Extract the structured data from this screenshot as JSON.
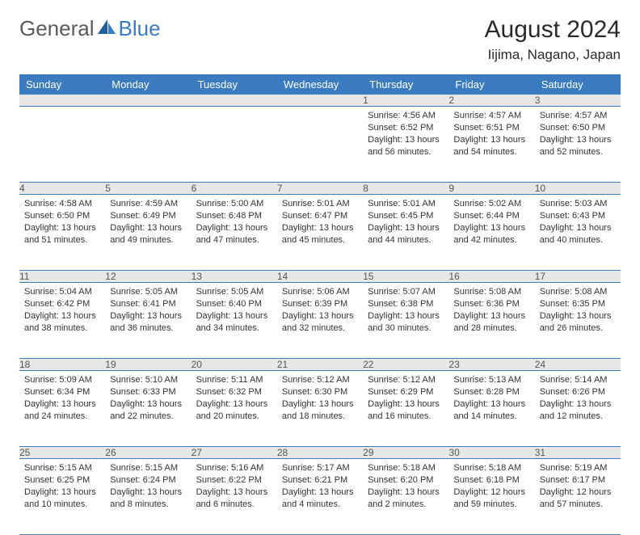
{
  "brand": {
    "part1": "General",
    "part2": "Blue"
  },
  "title": "August 2024",
  "location": "Iijima, Nagano, Japan",
  "colors": {
    "header_bg": "#3b7bbf",
    "header_text": "#ffffff",
    "daynum_bg": "#e7e7e7",
    "daynum_text": "#555555",
    "cell_text": "#333333",
    "row_border": "#3b7bbf",
    "logo_gray": "#5a5a5a",
    "logo_blue": "#3b7bbf",
    "background": "#ffffff"
  },
  "typography": {
    "title_fontsize": 30,
    "location_fontsize": 17,
    "dayheader_fontsize": 13,
    "daynum_fontsize": 12,
    "cell_fontsize": 11,
    "logo_fontsize": 26
  },
  "day_headers": [
    "Sunday",
    "Monday",
    "Tuesday",
    "Wednesday",
    "Thursday",
    "Friday",
    "Saturday"
  ],
  "weeks": [
    [
      null,
      null,
      null,
      null,
      {
        "n": "1",
        "sunrise": "Sunrise: 4:56 AM",
        "sunset": "Sunset: 6:52 PM",
        "daylight": "Daylight: 13 hours and 56 minutes."
      },
      {
        "n": "2",
        "sunrise": "Sunrise: 4:57 AM",
        "sunset": "Sunset: 6:51 PM",
        "daylight": "Daylight: 13 hours and 54 minutes."
      },
      {
        "n": "3",
        "sunrise": "Sunrise: 4:57 AM",
        "sunset": "Sunset: 6:50 PM",
        "daylight": "Daylight: 13 hours and 52 minutes."
      }
    ],
    [
      {
        "n": "4",
        "sunrise": "Sunrise: 4:58 AM",
        "sunset": "Sunset: 6:50 PM",
        "daylight": "Daylight: 13 hours and 51 minutes."
      },
      {
        "n": "5",
        "sunrise": "Sunrise: 4:59 AM",
        "sunset": "Sunset: 6:49 PM",
        "daylight": "Daylight: 13 hours and 49 minutes."
      },
      {
        "n": "6",
        "sunrise": "Sunrise: 5:00 AM",
        "sunset": "Sunset: 6:48 PM",
        "daylight": "Daylight: 13 hours and 47 minutes."
      },
      {
        "n": "7",
        "sunrise": "Sunrise: 5:01 AM",
        "sunset": "Sunset: 6:47 PM",
        "daylight": "Daylight: 13 hours and 45 minutes."
      },
      {
        "n": "8",
        "sunrise": "Sunrise: 5:01 AM",
        "sunset": "Sunset: 6:45 PM",
        "daylight": "Daylight: 13 hours and 44 minutes."
      },
      {
        "n": "9",
        "sunrise": "Sunrise: 5:02 AM",
        "sunset": "Sunset: 6:44 PM",
        "daylight": "Daylight: 13 hours and 42 minutes."
      },
      {
        "n": "10",
        "sunrise": "Sunrise: 5:03 AM",
        "sunset": "Sunset: 6:43 PM",
        "daylight": "Daylight: 13 hours and 40 minutes."
      }
    ],
    [
      {
        "n": "11",
        "sunrise": "Sunrise: 5:04 AM",
        "sunset": "Sunset: 6:42 PM",
        "daylight": "Daylight: 13 hours and 38 minutes."
      },
      {
        "n": "12",
        "sunrise": "Sunrise: 5:05 AM",
        "sunset": "Sunset: 6:41 PM",
        "daylight": "Daylight: 13 hours and 36 minutes."
      },
      {
        "n": "13",
        "sunrise": "Sunrise: 5:05 AM",
        "sunset": "Sunset: 6:40 PM",
        "daylight": "Daylight: 13 hours and 34 minutes."
      },
      {
        "n": "14",
        "sunrise": "Sunrise: 5:06 AM",
        "sunset": "Sunset: 6:39 PM",
        "daylight": "Daylight: 13 hours and 32 minutes."
      },
      {
        "n": "15",
        "sunrise": "Sunrise: 5:07 AM",
        "sunset": "Sunset: 6:38 PM",
        "daylight": "Daylight: 13 hours and 30 minutes."
      },
      {
        "n": "16",
        "sunrise": "Sunrise: 5:08 AM",
        "sunset": "Sunset: 6:36 PM",
        "daylight": "Daylight: 13 hours and 28 minutes."
      },
      {
        "n": "17",
        "sunrise": "Sunrise: 5:08 AM",
        "sunset": "Sunset: 6:35 PM",
        "daylight": "Daylight: 13 hours and 26 minutes."
      }
    ],
    [
      {
        "n": "18",
        "sunrise": "Sunrise: 5:09 AM",
        "sunset": "Sunset: 6:34 PM",
        "daylight": "Daylight: 13 hours and 24 minutes."
      },
      {
        "n": "19",
        "sunrise": "Sunrise: 5:10 AM",
        "sunset": "Sunset: 6:33 PM",
        "daylight": "Daylight: 13 hours and 22 minutes."
      },
      {
        "n": "20",
        "sunrise": "Sunrise: 5:11 AM",
        "sunset": "Sunset: 6:32 PM",
        "daylight": "Daylight: 13 hours and 20 minutes."
      },
      {
        "n": "21",
        "sunrise": "Sunrise: 5:12 AM",
        "sunset": "Sunset: 6:30 PM",
        "daylight": "Daylight: 13 hours and 18 minutes."
      },
      {
        "n": "22",
        "sunrise": "Sunrise: 5:12 AM",
        "sunset": "Sunset: 6:29 PM",
        "daylight": "Daylight: 13 hours and 16 minutes."
      },
      {
        "n": "23",
        "sunrise": "Sunrise: 5:13 AM",
        "sunset": "Sunset: 6:28 PM",
        "daylight": "Daylight: 13 hours and 14 minutes."
      },
      {
        "n": "24",
        "sunrise": "Sunrise: 5:14 AM",
        "sunset": "Sunset: 6:26 PM",
        "daylight": "Daylight: 13 hours and 12 minutes."
      }
    ],
    [
      {
        "n": "25",
        "sunrise": "Sunrise: 5:15 AM",
        "sunset": "Sunset: 6:25 PM",
        "daylight": "Daylight: 13 hours and 10 minutes."
      },
      {
        "n": "26",
        "sunrise": "Sunrise: 5:15 AM",
        "sunset": "Sunset: 6:24 PM",
        "daylight": "Daylight: 13 hours and 8 minutes."
      },
      {
        "n": "27",
        "sunrise": "Sunrise: 5:16 AM",
        "sunset": "Sunset: 6:22 PM",
        "daylight": "Daylight: 13 hours and 6 minutes."
      },
      {
        "n": "28",
        "sunrise": "Sunrise: 5:17 AM",
        "sunset": "Sunset: 6:21 PM",
        "daylight": "Daylight: 13 hours and 4 minutes."
      },
      {
        "n": "29",
        "sunrise": "Sunrise: 5:18 AM",
        "sunset": "Sunset: 6:20 PM",
        "daylight": "Daylight: 13 hours and 2 minutes."
      },
      {
        "n": "30",
        "sunrise": "Sunrise: 5:18 AM",
        "sunset": "Sunset: 6:18 PM",
        "daylight": "Daylight: 12 hours and 59 minutes."
      },
      {
        "n": "31",
        "sunrise": "Sunrise: 5:19 AM",
        "sunset": "Sunset: 6:17 PM",
        "daylight": "Daylight: 12 hours and 57 minutes."
      }
    ]
  ]
}
